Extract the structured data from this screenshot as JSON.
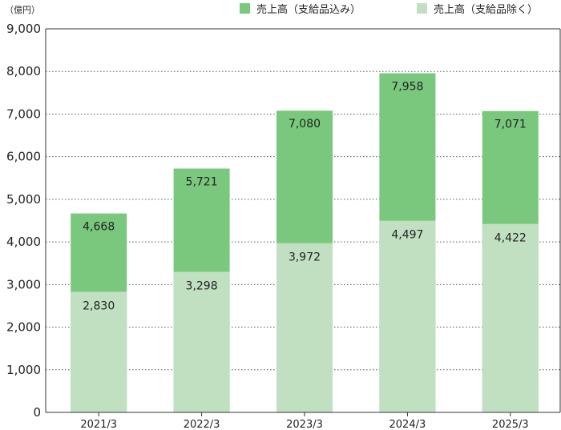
{
  "chart_data": {
    "type": "bar",
    "stacked": false,
    "overlapping": true,
    "unit_label": "（億円）",
    "categories": [
      "2021/3",
      "2022/3",
      "2023/3",
      "2024/3",
      "2025/3"
    ],
    "series": [
      {
        "name": "売上高（支給品込み）",
        "color": "#7ac87d",
        "values": [
          4668,
          5721,
          7080,
          7958,
          7071
        ]
      },
      {
        "name": "売上高（支給品除く）",
        "color": "#c1e0c2",
        "values": [
          2830,
          3298,
          3972,
          4497,
          4422
        ]
      }
    ],
    "y_ticks": [
      "0",
      "1,000",
      "2,000",
      "3,000",
      "4,000",
      "5,000",
      "6,000",
      "7,000",
      "8,000",
      "9,000"
    ],
    "ylim": [
      0,
      9000
    ],
    "grid": true,
    "legend_position": "top-right",
    "title": "",
    "xlabel": "",
    "ylabel": ""
  }
}
